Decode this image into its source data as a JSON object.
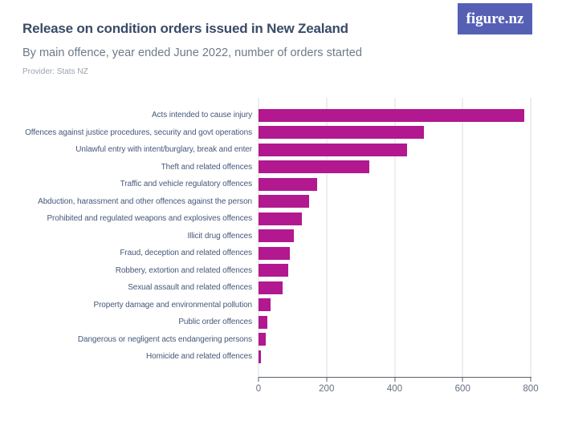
{
  "header": {
    "title": "Release on condition orders issued in New Zealand",
    "subtitle": "By main offence, year ended June 2022, number of orders started",
    "provider": "Provider: Stats NZ",
    "logo_text": "figure.nz"
  },
  "colors": {
    "bar": "#b2188f",
    "logo_background": "#5560b5",
    "title_text": "#394b66",
    "subtitle_text": "#6d7a8a",
    "provider_text": "#9ba3ae",
    "category_label_text": "#46587a",
    "gridline": "#dadde2",
    "axis_line": "#5a616d"
  },
  "chart_data": {
    "type": "bar",
    "orientation": "horizontal",
    "title": "Release on condition orders issued in New Zealand",
    "subtitle": "By main offence, year ended June 2022, number of orders started",
    "xlabel": "",
    "ylabel": "",
    "xlim": [
      0,
      800
    ],
    "x_ticks": [
      0,
      200,
      400,
      600,
      800
    ],
    "grid": "vertical",
    "legend": "none",
    "bar_color": "#b2188f",
    "categories": [
      "Acts intended to cause injury",
      "Offences against justice procedures, security and govt operations",
      "Unlawful entry with intent/burglary, break and enter",
      "Theft and related offences",
      "Traffic and vehicle regulatory offences",
      "Abduction, harassment and other offences against the person",
      "Prohibited and regulated weapons and explosives offences",
      "Illicit drug offences",
      "Fraud, deception and related offences",
      "Robbery, extortion and related offences",
      "Sexual assault and related offences",
      "Property damage and environmental pollution",
      "Public order offences",
      "Dangerous or negligent acts endangering persons",
      "Homicide and related offences"
    ],
    "values": [
      780,
      485,
      437,
      326,
      173,
      149,
      127,
      105,
      93,
      87,
      71,
      35,
      26,
      22,
      6
    ]
  }
}
